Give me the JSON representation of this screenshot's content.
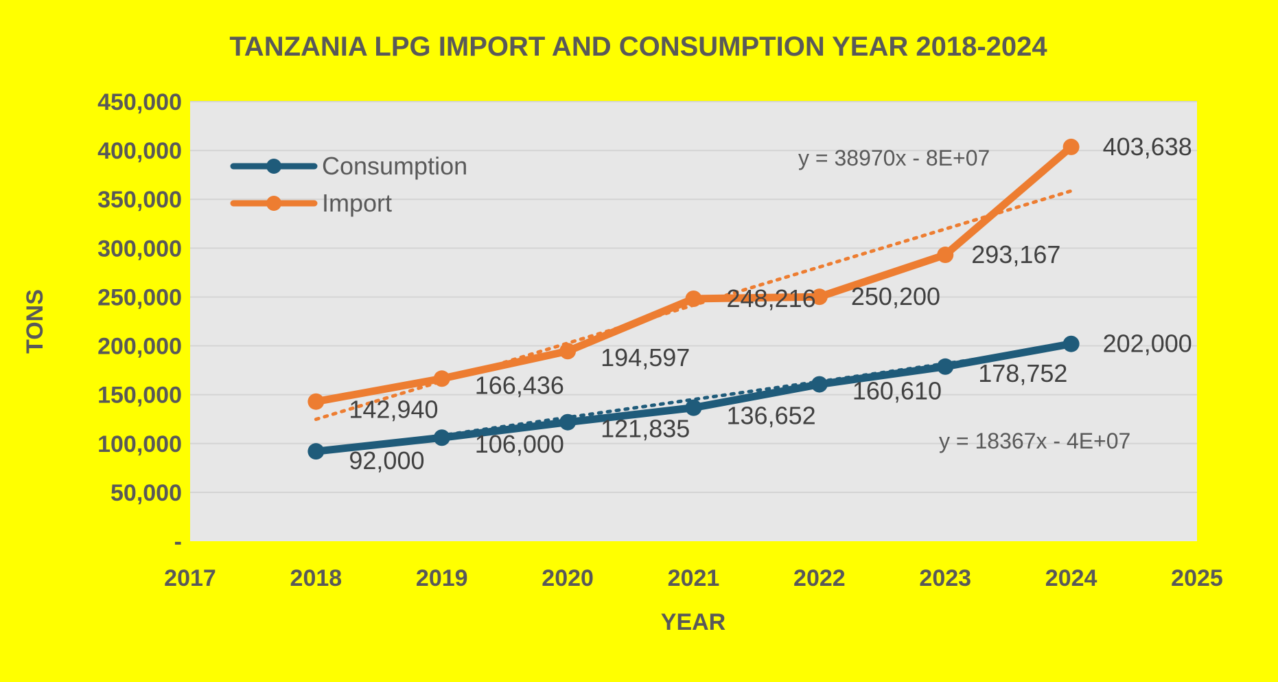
{
  "chart_data": {
    "type": "line",
    "title": "TANZANIA LPG IMPORT AND CONSUMPTION  YEAR 2018-2024",
    "xlabel": "YEAR",
    "ylabel": "TONS",
    "xlim": [
      2017,
      2025
    ],
    "ylim": [
      0,
      450000
    ],
    "x_ticks": [
      "2017",
      "2018",
      "2019",
      "2020",
      "2021",
      "2022",
      "2023",
      "2024",
      "2025"
    ],
    "y_ticks": [
      "-",
      "50,000",
      "100,000",
      "150,000",
      "200,000",
      "250,000",
      "300,000",
      "350,000",
      "400,000",
      "450,000"
    ],
    "grid": true,
    "legend_position": "top-left",
    "x": [
      2018,
      2019,
      2020,
      2021,
      2022,
      2023,
      2024
    ],
    "series": [
      {
        "name": "Consumption",
        "color": "#1f5b7a",
        "values": [
          92000,
          106000,
          121835,
          136652,
          160610,
          178752,
          202000
        ],
        "labels": [
          "92,000",
          "106,000",
          "121,835",
          "136,652",
          "160,610",
          "178,752",
          "202,000"
        ],
        "trendline": {
          "equation": "y = 18367x - 4E+07",
          "start": 90000,
          "end": 200200
        }
      },
      {
        "name": "Import",
        "color": "#ed7d31",
        "values": [
          142940,
          166436,
          194597,
          248216,
          250200,
          293167,
          403638
        ],
        "labels": [
          "142,940",
          "166,436",
          "194,597",
          "248,216",
          "250,200",
          "293,167",
          "403,638"
        ],
        "trendline": {
          "equation": "y = 38970x - 8E+07",
          "start": 124800,
          "end": 358600
        }
      }
    ]
  }
}
